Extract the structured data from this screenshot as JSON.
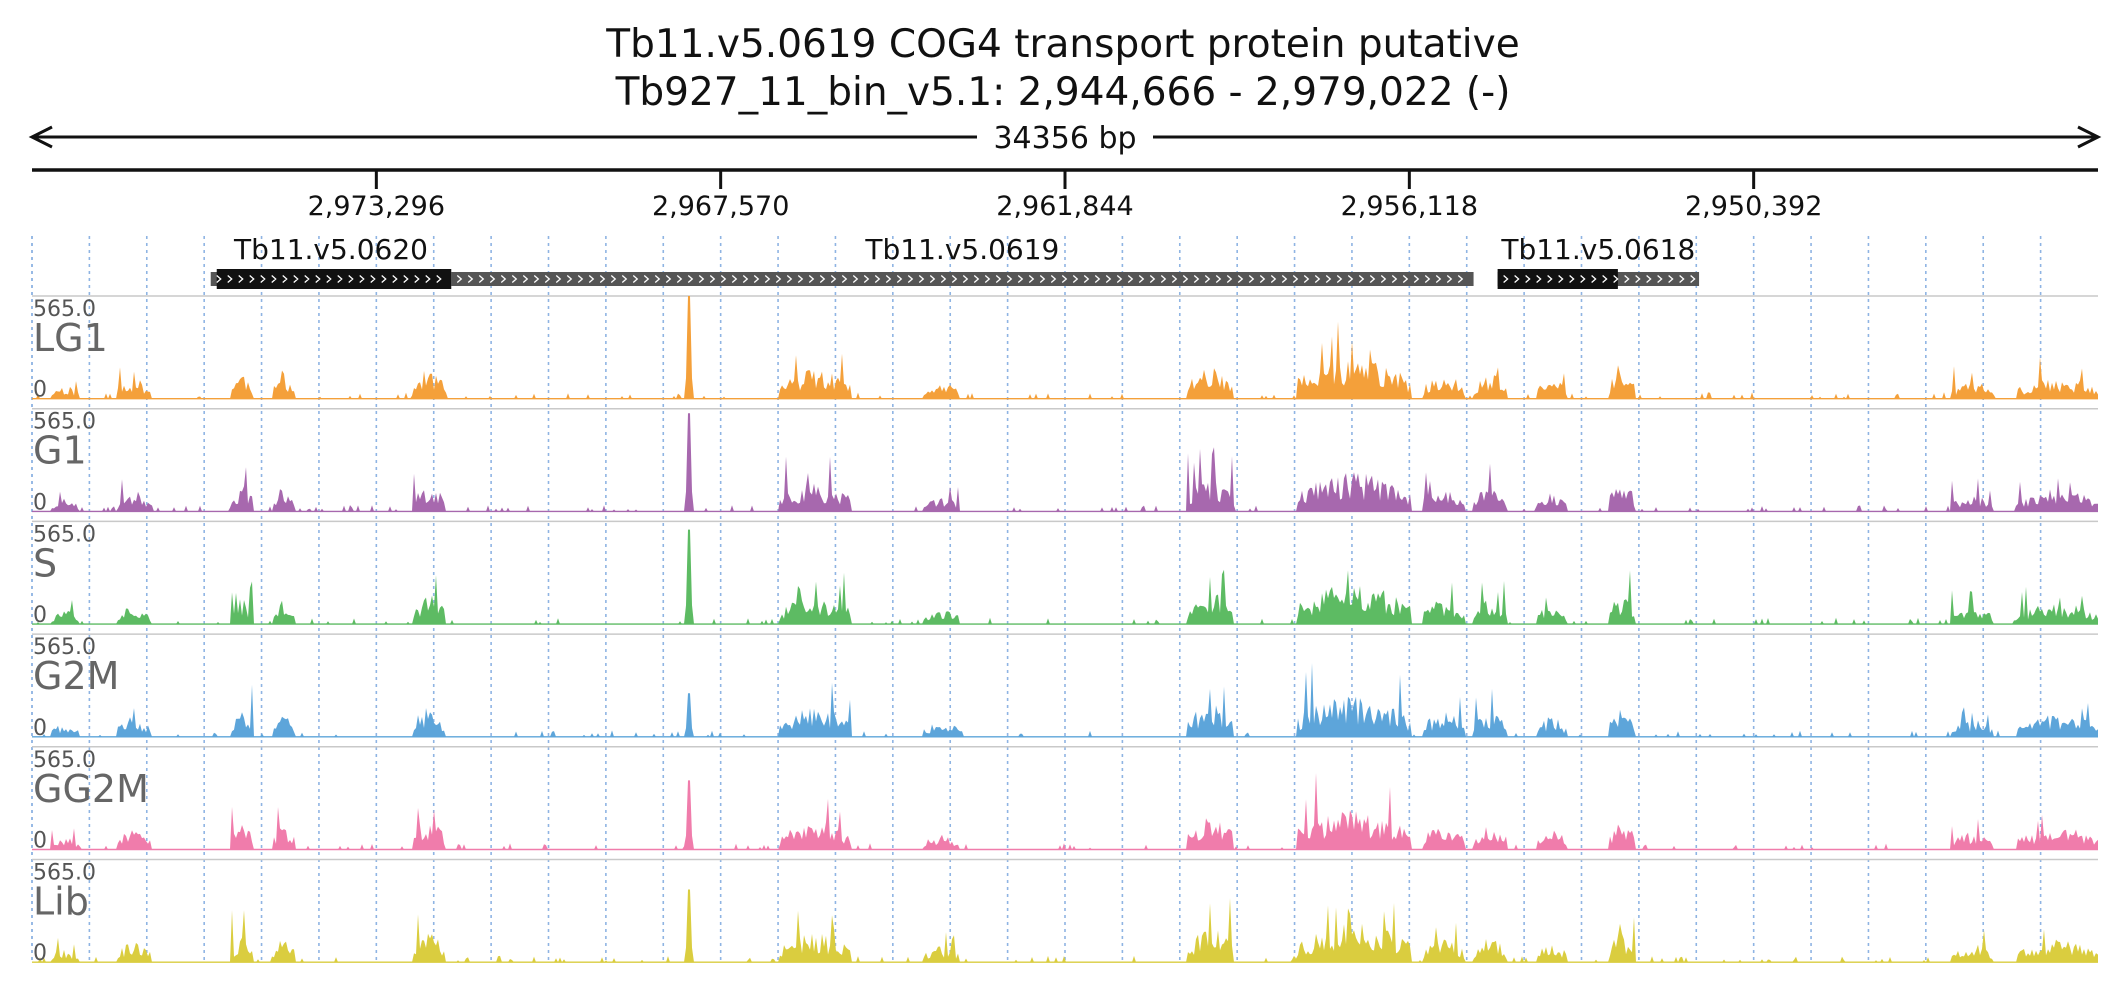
{
  "title_line1": "Tb11.v5.0619  COG4 transport protein  putative",
  "title_line2": "Tb927_11_bin_v5.1: 2,944,666 - 2,979,022 (-)",
  "chart_data": {
    "type": "area",
    "span_label": "34356 bp",
    "region": {
      "start": 2944666,
      "end": 2979022,
      "strand": "-"
    },
    "ticks": [
      "2,973,296",
      "2,967,570",
      "2,961,844",
      "2,956,118",
      "2,950,392"
    ],
    "tick_values": [
      2973296,
      2967570,
      2961844,
      2956118,
      2950392
    ],
    "genes": [
      {
        "name": "Tb11.v5.0620",
        "start": 2976050,
        "end": 2972050,
        "cds_start": 2975950,
        "cds_end": 2972050
      },
      {
        "name": "Tb11.v5.0619",
        "start": 2972050,
        "end": 2955050,
        "cds_start": null,
        "cds_end": null
      },
      {
        "name": "Tb11.v5.0618",
        "start": 2954650,
        "end": 2951300,
        "cds_start": 2954650,
        "cds_end": 2952650
      }
    ],
    "ylim": [
      0,
      565.0
    ],
    "ymax_label": "565.0",
    "ymin_label": "0",
    "tracks": [
      {
        "name": "LG1",
        "color": "#F4A03A",
        "seed": 11,
        "spike_height": 565
      },
      {
        "name": "G1",
        "color": "#A768AE",
        "seed": 23,
        "spike_height": 540
      },
      {
        "name": "S",
        "color": "#5DBB63",
        "seed": 37,
        "spike_height": 520
      },
      {
        "name": "G2M",
        "color": "#5DA5DA",
        "seed": 41,
        "spike_height": 240
      },
      {
        "name": "GG2M",
        "color": "#F07CAB",
        "seed": 53,
        "spike_height": 380
      },
      {
        "name": "Lib",
        "color": "#DACD3F",
        "seed": 67,
        "spike_height": 400
      }
    ],
    "signal_regions": [
      {
        "start": 2978700,
        "end": 2978250,
        "level": 60
      },
      {
        "start": 2977600,
        "end": 2977050,
        "level": 90
      },
      {
        "start": 2975700,
        "end": 2975350,
        "level": 120
      },
      {
        "start": 2975000,
        "end": 2974650,
        "level": 110
      },
      {
        "start": 2972700,
        "end": 2972150,
        "level": 130
      },
      {
        "start": 2966600,
        "end": 2965400,
        "level": 130
      },
      {
        "start": 2964200,
        "end": 2963600,
        "level": 70
      },
      {
        "start": 2959800,
        "end": 2959050,
        "level": 150
      },
      {
        "start": 2958000,
        "end": 2956100,
        "level": 180
      },
      {
        "start": 2955900,
        "end": 2955200,
        "level": 110
      },
      {
        "start": 2955050,
        "end": 2954500,
        "level": 110
      },
      {
        "start": 2954000,
        "end": 2953500,
        "level": 90
      },
      {
        "start": 2952800,
        "end": 2952350,
        "level": 130
      },
      {
        "start": 2947100,
        "end": 2946400,
        "level": 80
      },
      {
        "start": 2946000,
        "end": 2944666,
        "level": 100
      }
    ],
    "spike_position": 2968100,
    "grid": true,
    "grid_style": "dotted-blue"
  }
}
